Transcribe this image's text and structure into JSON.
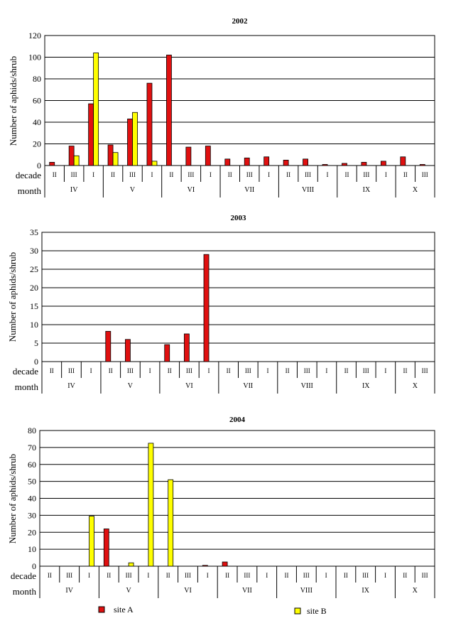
{
  "chart_data": [
    {
      "type": "bar",
      "title": "2002",
      "ylabel": "Number of aphids/shrub",
      "ylim": [
        0,
        120
      ],
      "yticks": [
        0,
        20,
        40,
        60,
        80,
        100,
        120
      ],
      "grid": true,
      "categories": [
        "II",
        "III",
        "I",
        "II",
        "III",
        "I",
        "II",
        "III",
        "I",
        "II",
        "III",
        "I",
        "II",
        "III",
        "I",
        "II",
        "III",
        "I",
        "II",
        "III"
      ],
      "months": [
        {
          "label": "IV",
          "decades": 3
        },
        {
          "label": "V",
          "decades": 3
        },
        {
          "label": "VI",
          "decades": 3
        },
        {
          "label": "VII",
          "decades": 3
        },
        {
          "label": "VIII",
          "decades": 3
        },
        {
          "label": "IX",
          "decades": 3
        },
        {
          "label": "X",
          "decades": 2
        }
      ],
      "series": [
        {
          "name": "site A",
          "color": "#e01010",
          "values": [
            3,
            18,
            57,
            19,
            43,
            76,
            102,
            17,
            18,
            6,
            7,
            8,
            5,
            6,
            1,
            2,
            3,
            4,
            8,
            1
          ]
        },
        {
          "name": "site B",
          "color": "#ffff00",
          "values": [
            0,
            9,
            104,
            12,
            49,
            4,
            0,
            0,
            0,
            0,
            0,
            0,
            0,
            0,
            0,
            0,
            0,
            0,
            0,
            0
          ]
        }
      ]
    },
    {
      "type": "bar",
      "title": "2003",
      "ylabel": "Number of aphids/shrub",
      "ylim": [
        0,
        35
      ],
      "yticks": [
        0,
        5,
        10,
        15,
        20,
        25,
        30,
        35
      ],
      "grid": true,
      "categories": [
        "II",
        "III",
        "I",
        "II",
        "III",
        "I",
        "II",
        "III",
        "I",
        "II",
        "III",
        "I",
        "II",
        "III",
        "I",
        "II",
        "III",
        "I",
        "II",
        "III"
      ],
      "months": [
        {
          "label": "IV",
          "decades": 3
        },
        {
          "label": "V",
          "decades": 3
        },
        {
          "label": "VI",
          "decades": 3
        },
        {
          "label": "VII",
          "decades": 3
        },
        {
          "label": "VIII",
          "decades": 3
        },
        {
          "label": "IX",
          "decades": 3
        },
        {
          "label": "X",
          "decades": 2
        }
      ],
      "series": [
        {
          "name": "site A",
          "color": "#e01010",
          "values": [
            0,
            0,
            0,
            8.2,
            6,
            0,
            4.6,
            7.5,
            29,
            0,
            0,
            0,
            0,
            0,
            0,
            0,
            0,
            0,
            0,
            0
          ]
        },
        {
          "name": "site B",
          "color": "#ffff00",
          "values": [
            0,
            0,
            0,
            0,
            0,
            0,
            0,
            0,
            0,
            0,
            0,
            0,
            0,
            0,
            0,
            0,
            0,
            0,
            0,
            0
          ]
        }
      ]
    },
    {
      "type": "bar",
      "title": "2004",
      "ylabel": "Number of aphids/shrub",
      "ylim": [
        0,
        80
      ],
      "yticks": [
        0,
        10,
        20,
        30,
        40,
        50,
        60,
        70,
        80
      ],
      "grid": true,
      "categories": [
        "II",
        "III",
        "I",
        "II",
        "III",
        "I",
        "II",
        "III",
        "I",
        "II",
        "III",
        "I",
        "II",
        "III",
        "I",
        "II",
        "III",
        "I",
        "II",
        "III"
      ],
      "months": [
        {
          "label": "IV",
          "decades": 3
        },
        {
          "label": "V",
          "decades": 3
        },
        {
          "label": "VI",
          "decades": 3
        },
        {
          "label": "VII",
          "decades": 3
        },
        {
          "label": "VIII",
          "decades": 3
        },
        {
          "label": "IX",
          "decades": 3
        },
        {
          "label": "X",
          "decades": 2
        }
      ],
      "series": [
        {
          "name": "site A",
          "color": "#e01010",
          "values": [
            0,
            0,
            0,
            22,
            0,
            0,
            0,
            0,
            0.5,
            2.5,
            0,
            0,
            0,
            0,
            0,
            0,
            0,
            0,
            0,
            0
          ]
        },
        {
          "name": "site B",
          "color": "#ffff00",
          "values": [
            0,
            0,
            29.5,
            0,
            2,
            72.5,
            51,
            0,
            0,
            0,
            0,
            0,
            0,
            0,
            0,
            0,
            0,
            0,
            0,
            0
          ]
        }
      ]
    }
  ],
  "row_labels": {
    "decade": "decade",
    "month": "month"
  },
  "legend": {
    "position": "bottom",
    "items": [
      {
        "label": "site A",
        "color": "#e01010"
      },
      {
        "label": "site B",
        "color": "#ffff00"
      }
    ]
  }
}
